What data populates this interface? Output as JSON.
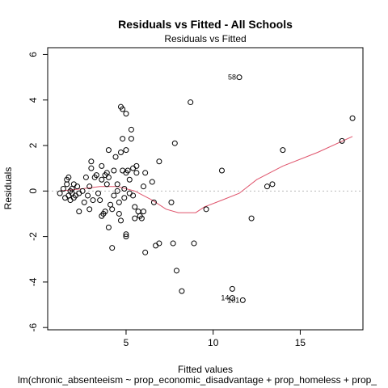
{
  "chart_data": {
    "type": "scatter",
    "title": "Residuals vs Fitted - All Schools",
    "subtitle": "Residuals vs Fitted",
    "xlabel": "Fitted values",
    "ylabel": "Residuals",
    "caption": "lm(chronic_absenteeism ~ prop_economic_disadvantage + prop_homeless + prop_",
    "xlim": [
      0.5,
      18.6
    ],
    "ylim": [
      -6.1,
      6.3
    ],
    "x_ticks": [
      5,
      10,
      15
    ],
    "y_ticks": [
      -6,
      -4,
      -2,
      0,
      2,
      4,
      6
    ],
    "grid": false,
    "reference_line_y": 0,
    "colors": {
      "points": "#000000",
      "smooth": "#df536b",
      "reference": "#bbbbbb"
    },
    "points": [
      {
        "x": 1.2,
        "y": -0.1
      },
      {
        "x": 1.4,
        "y": 0.1
      },
      {
        "x": 1.5,
        "y": -0.3
      },
      {
        "x": 1.6,
        "y": 0.3
      },
      {
        "x": 1.6,
        "y": 0.5
      },
      {
        "x": 1.7,
        "y": -0.2
      },
      {
        "x": 1.7,
        "y": 0.6
      },
      {
        "x": 1.8,
        "y": 0.0
      },
      {
        "x": 1.8,
        "y": -0.4
      },
      {
        "x": 1.9,
        "y": 0.1
      },
      {
        "x": 1.9,
        "y": -0.1
      },
      {
        "x": 2.0,
        "y": -0.3
      },
      {
        "x": 2.0,
        "y": 0.3
      },
      {
        "x": 2.1,
        "y": -0.2
      },
      {
        "x": 2.2,
        "y": 0.2
      },
      {
        "x": 2.3,
        "y": -0.1
      },
      {
        "x": 2.3,
        "y": -0.9
      },
      {
        "x": 2.5,
        "y": 0.0
      },
      {
        "x": 2.6,
        "y": -0.5
      },
      {
        "x": 2.7,
        "y": 0.6
      },
      {
        "x": 2.8,
        "y": -0.2
      },
      {
        "x": 2.9,
        "y": 0.2
      },
      {
        "x": 2.9,
        "y": -0.8
      },
      {
        "x": 3.0,
        "y": 1.0
      },
      {
        "x": 3.0,
        "y": 1.3
      },
      {
        "x": 3.1,
        "y": -0.4
      },
      {
        "x": 3.2,
        "y": 0.6
      },
      {
        "x": 3.3,
        "y": 0.7
      },
      {
        "x": 3.4,
        "y": -0.1
      },
      {
        "x": 3.5,
        "y": -0.4
      },
      {
        "x": 3.6,
        "y": 0.5
      },
      {
        "x": 3.6,
        "y": 1.1
      },
      {
        "x": 3.6,
        "y": -1.1
      },
      {
        "x": 3.7,
        "y": -1.0
      },
      {
        "x": 3.8,
        "y": -0.9
      },
      {
        "x": 3.8,
        "y": 0.7
      },
      {
        "x": 3.9,
        "y": 0.8
      },
      {
        "x": 3.9,
        "y": 0.3
      },
      {
        "x": 4.0,
        "y": 0.6
      },
      {
        "x": 4.0,
        "y": 1.8
      },
      {
        "x": 4.0,
        "y": -1.6
      },
      {
        "x": 4.1,
        "y": -0.6
      },
      {
        "x": 4.2,
        "y": -0.8
      },
      {
        "x": 4.2,
        "y": -2.5
      },
      {
        "x": 4.3,
        "y": -0.2
      },
      {
        "x": 4.3,
        "y": 0.9
      },
      {
        "x": 4.4,
        "y": 1.5
      },
      {
        "x": 4.5,
        "y": 0.3
      },
      {
        "x": 4.5,
        "y": 0.0
      },
      {
        "x": 4.6,
        "y": -0.5
      },
      {
        "x": 4.6,
        "y": -1.0
      },
      {
        "x": 4.7,
        "y": 1.7
      },
      {
        "x": 4.7,
        "y": 3.7
      },
      {
        "x": 4.7,
        "y": -1.3
      },
      {
        "x": 4.8,
        "y": 0.9
      },
      {
        "x": 4.8,
        "y": 2.3
      },
      {
        "x": 4.8,
        "y": 3.6
      },
      {
        "x": 4.9,
        "y": 0.1
      },
      {
        "x": 4.9,
        "y": -0.3
      },
      {
        "x": 5.0,
        "y": 3.4
      },
      {
        "x": 5.0,
        "y": 1.8
      },
      {
        "x": 5.0,
        "y": 0.8
      },
      {
        "x": 5.0,
        "y": -1.9
      },
      {
        "x": 5.0,
        "y": -2.0
      },
      {
        "x": 5.1,
        "y": 0.9
      },
      {
        "x": 5.2,
        "y": -0.1
      },
      {
        "x": 5.2,
        "y": 0.5
      },
      {
        "x": 5.3,
        "y": 2.7
      },
      {
        "x": 5.3,
        "y": 2.3
      },
      {
        "x": 5.4,
        "y": -0.2
      },
      {
        "x": 5.4,
        "y": 1.0
      },
      {
        "x": 5.5,
        "y": -0.7
      },
      {
        "x": 5.5,
        "y": -1.2
      },
      {
        "x": 5.6,
        "y": 0.8
      },
      {
        "x": 5.6,
        "y": 1.1
      },
      {
        "x": 5.7,
        "y": -0.9
      },
      {
        "x": 5.8,
        "y": -1.1
      },
      {
        "x": 5.9,
        "y": -1.2
      },
      {
        "x": 6.0,
        "y": 0.2
      },
      {
        "x": 6.0,
        "y": -0.9
      },
      {
        "x": 6.1,
        "y": 0.8
      },
      {
        "x": 6.1,
        "y": -2.7
      },
      {
        "x": 6.5,
        "y": 0.4
      },
      {
        "x": 6.6,
        "y": -0.5
      },
      {
        "x": 6.7,
        "y": -2.4
      },
      {
        "x": 6.9,
        "y": -2.3
      },
      {
        "x": 6.9,
        "y": 1.3
      },
      {
        "x": 7.6,
        "y": -0.5
      },
      {
        "x": 7.7,
        "y": -2.3
      },
      {
        "x": 7.8,
        "y": 2.1
      },
      {
        "x": 7.9,
        "y": -3.5
      },
      {
        "x": 8.2,
        "y": -4.4
      },
      {
        "x": 8.7,
        "y": 3.9
      },
      {
        "x": 8.9,
        "y": -2.3
      },
      {
        "x": 9.6,
        "y": -0.8
      },
      {
        "x": 10.5,
        "y": 0.9
      },
      {
        "x": 11.1,
        "y": -4.3
      },
      {
        "x": 11.1,
        "y": -4.7
      },
      {
        "x": 11.5,
        "y": 5.0
      },
      {
        "x": 11.7,
        "y": -4.8
      },
      {
        "x": 12.2,
        "y": -1.2
      },
      {
        "x": 13.1,
        "y": 0.2
      },
      {
        "x": 13.4,
        "y": 0.3
      },
      {
        "x": 14.0,
        "y": 1.8
      },
      {
        "x": 17.4,
        "y": 2.2
      },
      {
        "x": 18.0,
        "y": 3.2
      }
    ],
    "point_labels": [
      {
        "text": "58",
        "x": 11.5,
        "y": 5.0,
        "side": "left"
      },
      {
        "text": "14",
        "x": 11.1,
        "y": -4.7,
        "side": "left"
      },
      {
        "text": "101",
        "x": 11.7,
        "y": -4.8,
        "side": "left"
      }
    ],
    "smooth_line": [
      {
        "x": 1.2,
        "y": 0.0
      },
      {
        "x": 2.5,
        "y": 0.1
      },
      {
        "x": 3.5,
        "y": 0.2
      },
      {
        "x": 4.5,
        "y": 0.2
      },
      {
        "x": 5.5,
        "y": 0.0
      },
      {
        "x": 6.5,
        "y": -0.4
      },
      {
        "x": 7.3,
        "y": -0.8
      },
      {
        "x": 8.0,
        "y": -0.95
      },
      {
        "x": 9.0,
        "y": -0.95
      },
      {
        "x": 9.5,
        "y": -0.7
      },
      {
        "x": 10.5,
        "y": -0.4
      },
      {
        "x": 11.5,
        "y": -0.1
      },
      {
        "x": 12.5,
        "y": 0.5
      },
      {
        "x": 14.0,
        "y": 1.1
      },
      {
        "x": 16.0,
        "y": 1.7
      },
      {
        "x": 18.0,
        "y": 2.4
      }
    ]
  }
}
